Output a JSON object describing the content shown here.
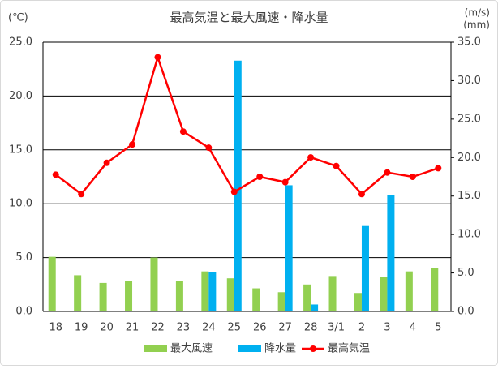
{
  "chart_data": {
    "type": "combo",
    "title": "最高気温と最大風速・降水量",
    "y_label": "(℃)",
    "y2_label": [
      "(m/s)",
      "(mm)"
    ],
    "categories": [
      "18",
      "19",
      "20",
      "21",
      "22",
      "23",
      "24",
      "25",
      "26",
      "27",
      "28",
      "3/1",
      "2",
      "3",
      "4",
      "5"
    ],
    "series": [
      {
        "name": "最大風速",
        "type": "bar",
        "axis": "y2",
        "color": "#92d050",
        "values": [
          7.1,
          4.7,
          3.7,
          4.0,
          7.0,
          3.9,
          5.2,
          4.3,
          3.0,
          2.5,
          3.5,
          4.6,
          2.4,
          4.5,
          5.2,
          5.6
        ]
      },
      {
        "name": "降水量",
        "type": "bar",
        "axis": "y2",
        "color": "#00b0f0",
        "values": [
          null,
          null,
          null,
          null,
          null,
          null,
          5.1,
          32.6,
          null,
          16.4,
          0.9,
          null,
          11.1,
          15.1,
          null,
          null
        ]
      },
      {
        "name": "最高気温",
        "type": "line",
        "color": "#ff0000",
        "values": [
          12.7,
          10.9,
          13.8,
          15.5,
          23.6,
          16.7,
          15.2,
          11.1,
          12.5,
          12.0,
          14.3,
          13.5,
          10.9,
          12.9,
          12.5,
          13.3
        ]
      }
    ],
    "ylim": [
      0,
      25
    ],
    "yticks": [
      {
        "value": 0,
        "label": "0.0"
      },
      {
        "value": 5,
        "label": "5.0"
      },
      {
        "value": 10,
        "label": "10.0"
      },
      {
        "value": 15,
        "label": "15.0"
      },
      {
        "value": 20,
        "label": "20.0"
      },
      {
        "value": 25,
        "label": "25.0"
      }
    ],
    "y2lim": [
      0,
      35
    ],
    "y2ticks": [
      {
        "value": 0,
        "label": "0.0"
      },
      {
        "value": 5,
        "label": "5.0"
      },
      {
        "value": 10,
        "label": "10.0"
      },
      {
        "value": 15,
        "label": "15.0"
      },
      {
        "value": 20,
        "label": "20.0"
      },
      {
        "value": 25,
        "label": "25.0"
      },
      {
        "value": 30,
        "label": "30.0"
      },
      {
        "value": 35,
        "label": "35.0"
      }
    ],
    "grid": true,
    "legend": "bottom"
  }
}
